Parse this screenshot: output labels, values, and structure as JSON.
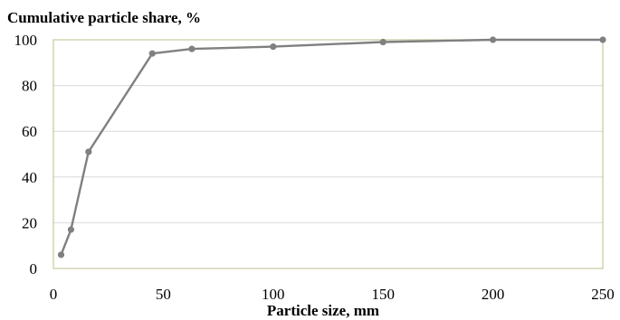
{
  "chart_data": {
    "type": "line",
    "title": "",
    "ylabel": "Cumulative particle share, %",
    "xlabel": "Particle size, mm",
    "xlim": [
      0,
      250
    ],
    "ylim": [
      0,
      100
    ],
    "x_ticks": [
      0,
      50,
      100,
      150,
      200,
      250
    ],
    "y_ticks": [
      0,
      20,
      40,
      60,
      80,
      100
    ],
    "grid": "horizontal",
    "legend": "none",
    "series": [
      {
        "x": [
          3.5,
          8,
          16,
          45,
          63,
          100,
          150,
          200,
          250
        ],
        "y": [
          6,
          17,
          51,
          94,
          96,
          97,
          99,
          100,
          100
        ],
        "color": "#808080"
      }
    ],
    "axis_color": "#c8c8a0",
    "grid_color": "#d9d9d9"
  }
}
